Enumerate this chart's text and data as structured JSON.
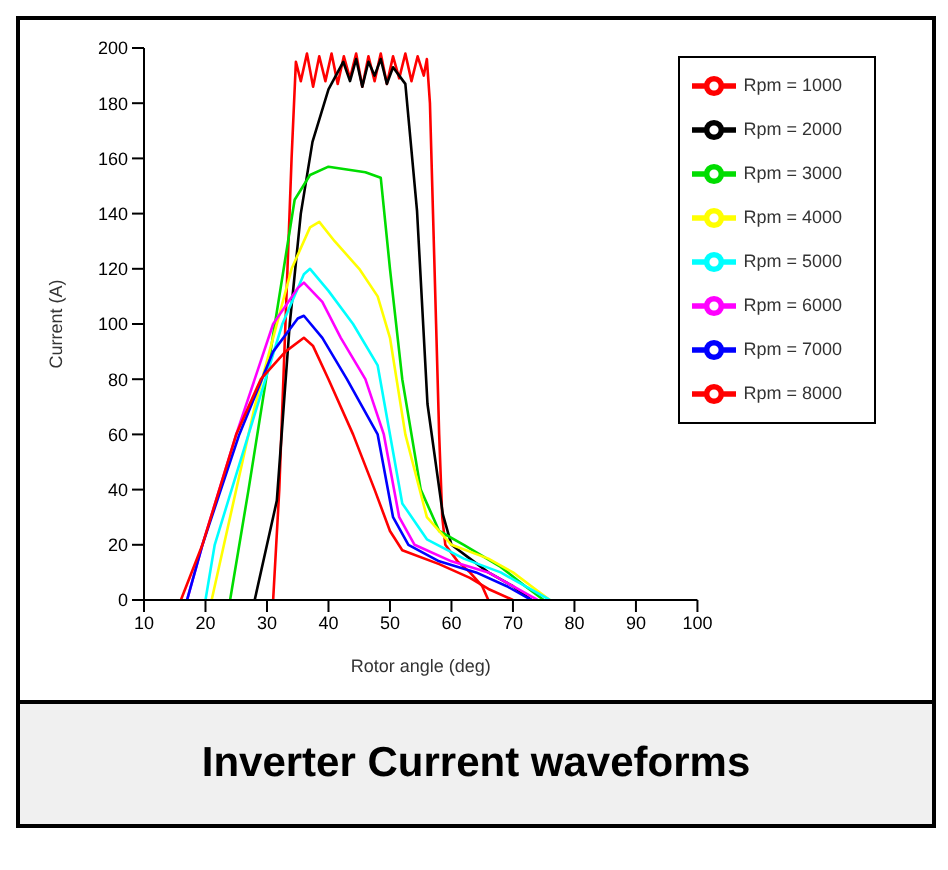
{
  "chart_data": {
    "type": "line",
    "title": "Inverter Current waveforms",
    "xlabel": "Rotor angle (deg)",
    "ylabel": "Current (A)",
    "xlim": [
      10,
      100
    ],
    "xticks": [
      10,
      20,
      30,
      40,
      50,
      60,
      70,
      80,
      90,
      100
    ],
    "ylim": [
      0,
      200
    ],
    "yticks": [
      0,
      20,
      40,
      60,
      80,
      100,
      120,
      140,
      160,
      180,
      200
    ],
    "grid": false,
    "legend": "top right",
    "marker": "none",
    "line_style": "solid",
    "series": [
      {
        "name": "Rpm = 1000",
        "color": "#ff0000",
        "x": [
          31,
          32,
          33,
          34,
          34.7,
          35.5,
          36.5,
          37.5,
          38.5,
          39.5,
          40.5,
          41.5,
          42.5,
          43.5,
          44.5,
          45.5,
          46.5,
          47.5,
          48.5,
          49.5,
          50.5,
          51.5,
          52.5,
          53.5,
          54.5,
          55.5,
          56,
          56.5,
          57,
          57.5,
          58,
          58.5,
          59,
          61,
          63,
          65,
          66
        ],
        "values": [
          0,
          40,
          100,
          160,
          195,
          188,
          198,
          186,
          197,
          188,
          198,
          187,
          197,
          189,
          198,
          186,
          197,
          188,
          198,
          187,
          197,
          189,
          198,
          188,
          197,
          190,
          196,
          180,
          140,
          100,
          60,
          30,
          20,
          14,
          10,
          5,
          0
        ]
      },
      {
        "name": "Rpm = 2000",
        "color": "#000000",
        "x": [
          28,
          30,
          31.6,
          33.7,
          35.5,
          37.4,
          40,
          42.4,
          43.5,
          44.5,
          45.5,
          46.5,
          47.5,
          48.5,
          49.5,
          50.5,
          51.5,
          52.5,
          54.4,
          56.1,
          58.6,
          60,
          63,
          66,
          70,
          73
        ],
        "values": [
          0,
          20,
          36,
          100,
          140,
          166,
          185,
          195,
          188,
          196,
          186,
          195,
          190,
          196,
          187,
          193,
          190,
          187,
          141,
          71,
          31,
          20,
          15,
          10,
          5,
          0
        ]
      },
      {
        "name": "Rpm = 3000",
        "color": "#00dd00",
        "x": [
          24,
          27,
          34.5,
          37,
          40,
          43,
          46,
          48.5,
          50,
          52,
          55,
          58,
          62,
          68,
          72,
          75
        ],
        "values": [
          0,
          40,
          145,
          154,
          157,
          156,
          155,
          153,
          120,
          80,
          40,
          25,
          20,
          12,
          5,
          0
        ]
      },
      {
        "name": "Rpm = 4000",
        "color": "#ffff00",
        "x": [
          21,
          23,
          28,
          34,
          37,
          38.5,
          41,
          45,
          48,
          50,
          52.5,
          56,
          60,
          66,
          70,
          73,
          76
        ],
        "values": [
          0,
          20,
          70,
          120,
          135,
          137,
          130,
          120,
          110,
          95,
          60,
          30,
          20,
          15,
          10,
          5,
          0
        ]
      },
      {
        "name": "Rpm = 5000",
        "color": "#00ffff",
        "x": [
          20,
          21.5,
          27,
          32.5,
          36,
          37,
          40,
          44,
          48,
          50,
          52,
          56,
          62,
          68,
          72,
          76
        ],
        "values": [
          0,
          20,
          60,
          100,
          118,
          120,
          112,
          100,
          85,
          60,
          35,
          22,
          15,
          10,
          5,
          0
        ]
      },
      {
        "name": "Rpm = 6000",
        "color": "#ff00ff",
        "x": [
          17,
          19.5,
          25,
          31,
          35,
          36,
          39,
          42,
          46,
          49,
          51.5,
          54,
          60,
          66,
          70,
          74
        ],
        "values": [
          0,
          20,
          60,
          100,
          113,
          115,
          108,
          95,
          80,
          60,
          30,
          20,
          14,
          10,
          5,
          0
        ]
      },
      {
        "name": "Rpm = 7000",
        "color": "#0000ff",
        "x": [
          17,
          19.5,
          25.5,
          31,
          35,
          36,
          39,
          43,
          48,
          50.5,
          53,
          58,
          64,
          69,
          73
        ],
        "values": [
          0,
          20,
          60,
          90,
          102,
          103,
          95,
          80,
          60,
          30,
          20,
          14,
          10,
          5,
          0
        ]
      },
      {
        "name": "Rpm = 8000",
        "color": "#ff0000",
        "x": [
          16,
          19.5,
          25,
          29,
          33,
          36,
          37.5,
          40,
          44,
          47.5,
          50,
          52,
          58,
          63,
          66,
          70
        ],
        "values": [
          0,
          20,
          60,
          80,
          90,
          95,
          92,
          80,
          60,
          40,
          25,
          18,
          13,
          8,
          4,
          0
        ]
      }
    ]
  }
}
